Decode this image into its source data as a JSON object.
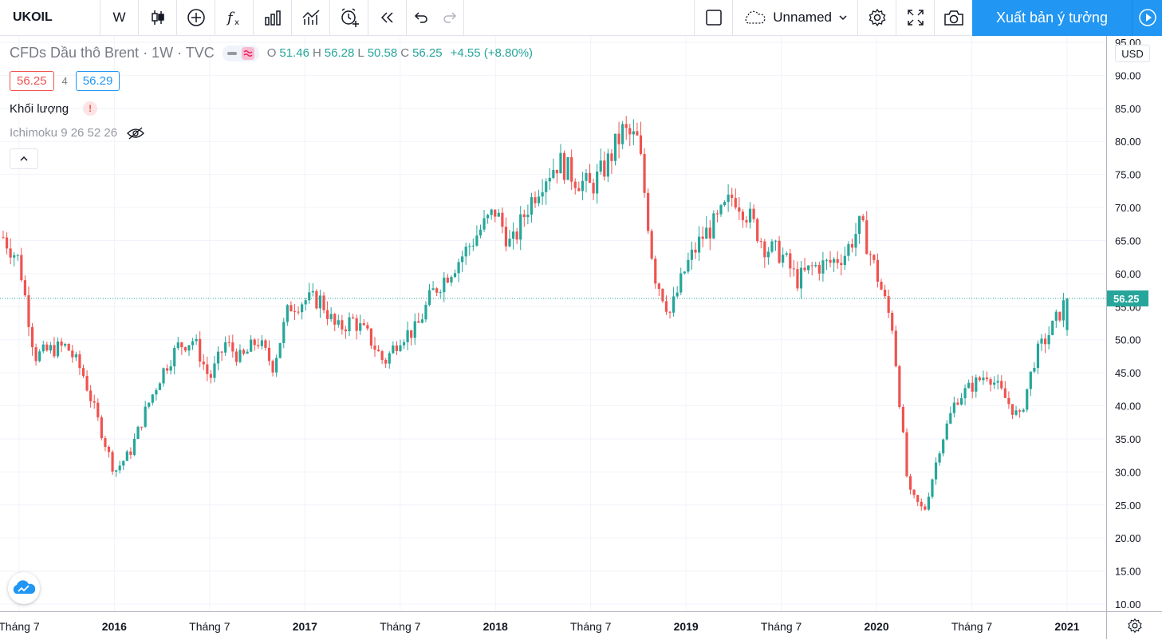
{
  "toolbar": {
    "symbol": "UKOIL",
    "interval": "W",
    "unnamed_label": "Unnamed",
    "publish_label": "Xuất bản ý tưởng"
  },
  "legend": {
    "title": "CFDs Dầu thô Brent · 1W · TVC",
    "o_label": "O",
    "o": "51.46",
    "h_label": "H",
    "h": "56.28",
    "l_label": "L",
    "l": "50.58",
    "c_label": "C",
    "c": "56.25",
    "change": "+4.55 (+8.80%)"
  },
  "bidask": {
    "bid": "56.25",
    "spread": "4",
    "ask": "56.29"
  },
  "studies": {
    "volume": "Khối lượng",
    "warning": "!",
    "ichimoku": "Ichimoku 9 26 52 26"
  },
  "price_scale": {
    "currency": "USD",
    "ticks": [
      "95.00",
      "90.00",
      "85.00",
      "80.00",
      "75.00",
      "70.00",
      "65.00",
      "60.00",
      "55.00",
      "50.00",
      "45.00",
      "40.00",
      "35.00",
      "30.00",
      "25.00",
      "20.00",
      "15.00",
      "10.00"
    ],
    "last_price": "56.25"
  },
  "time_scale": {
    "labels": [
      {
        "t": "Tháng 7",
        "bold": false
      },
      {
        "t": "2016",
        "bold": true
      },
      {
        "t": "Tháng 7",
        "bold": false
      },
      {
        "t": "2017",
        "bold": true
      },
      {
        "t": "Tháng 7",
        "bold": false
      },
      {
        "t": "2018",
        "bold": true
      },
      {
        "t": "Tháng 7",
        "bold": false
      },
      {
        "t": "2019",
        "bold": true
      },
      {
        "t": "Tháng 7",
        "bold": false
      },
      {
        "t": "2020",
        "bold": true
      },
      {
        "t": "Tháng 7",
        "bold": false
      },
      {
        "t": "2021",
        "bold": true
      }
    ]
  },
  "colors": {
    "up": "#26a69a",
    "down": "#ef5350",
    "accent": "#2196f3",
    "grid": "#f0f3fa"
  },
  "chart_data": {
    "type": "candlestick",
    "title": "CFDs Dầu thô Brent · 1W · TVC",
    "ylim": [
      10,
      95
    ],
    "x_start": "2015-06",
    "x_end": "2021-01",
    "close_path": [
      [
        "2015-06",
        65.5
      ],
      [
        "2015-07",
        62.0
      ],
      [
        "2015-08",
        47.5
      ],
      [
        "2015-09",
        48.5
      ],
      [
        "2015-10",
        49.0
      ],
      [
        "2015-11",
        45.0
      ],
      [
        "2015-12",
        37.5
      ],
      [
        "2016-01",
        30.0
      ],
      [
        "2016-02",
        33.0
      ],
      [
        "2016-03",
        39.5
      ],
      [
        "2016-04",
        45.0
      ],
      [
        "2016-05",
        49.0
      ],
      [
        "2016-06",
        50.0
      ],
      [
        "2016-07",
        44.0
      ],
      [
        "2016-08",
        49.5
      ],
      [
        "2016-09",
        47.0
      ],
      [
        "2016-10",
        50.0
      ],
      [
        "2016-11",
        46.0
      ],
      [
        "2016-12",
        55.0
      ],
      [
        "2017-01",
        56.0
      ],
      [
        "2017-02",
        56.0
      ],
      [
        "2017-03",
        51.5
      ],
      [
        "2017-04",
        53.0
      ],
      [
        "2017-05",
        50.5
      ],
      [
        "2017-06",
        46.5
      ],
      [
        "2017-07",
        50.5
      ],
      [
        "2017-08",
        51.5
      ],
      [
        "2017-09",
        57.0
      ],
      [
        "2017-10",
        60.0
      ],
      [
        "2017-11",
        63.0
      ],
      [
        "2017-12",
        66.5
      ],
      [
        "2018-01",
        69.5
      ],
      [
        "2018-02",
        64.0
      ],
      [
        "2018-03",
        70.0
      ],
      [
        "2018-04",
        74.5
      ],
      [
        "2018-05",
        77.0
      ],
      [
        "2018-06",
        74.5
      ],
      [
        "2018-07",
        73.0
      ],
      [
        "2018-08",
        76.5
      ],
      [
        "2018-09",
        81.5
      ],
      [
        "2018-10",
        80.0
      ],
      [
        "2018-11",
        60.0
      ],
      [
        "2018-12",
        54.0
      ],
      [
        "2019-01",
        61.0
      ],
      [
        "2019-02",
        65.5
      ],
      [
        "2019-03",
        68.0
      ],
      [
        "2019-04",
        72.0
      ],
      [
        "2019-05",
        68.5
      ],
      [
        "2019-06",
        64.0
      ],
      [
        "2019-07",
        63.0
      ],
      [
        "2019-08",
        59.0
      ],
      [
        "2019-09",
        61.0
      ],
      [
        "2019-10",
        61.5
      ],
      [
        "2019-11",
        63.0
      ],
      [
        "2019-12",
        67.5
      ],
      [
        "2020-01",
        60.0
      ],
      [
        "2020-02",
        52.0
      ],
      [
        "2020-03",
        27.0
      ],
      [
        "2020-04",
        24.0
      ],
      [
        "2020-05",
        34.0
      ],
      [
        "2020-06",
        41.0
      ],
      [
        "2020-07",
        43.0
      ],
      [
        "2020-08",
        45.0
      ],
      [
        "2020-09",
        41.5
      ],
      [
        "2020-10",
        38.0
      ],
      [
        "2020-11",
        47.5
      ],
      [
        "2020-12",
        51.5
      ],
      [
        "2021-01",
        56.25
      ]
    ],
    "last": {
      "open": 51.46,
      "high": 56.28,
      "low": 50.58,
      "close": 56.25
    },
    "grid": true
  }
}
